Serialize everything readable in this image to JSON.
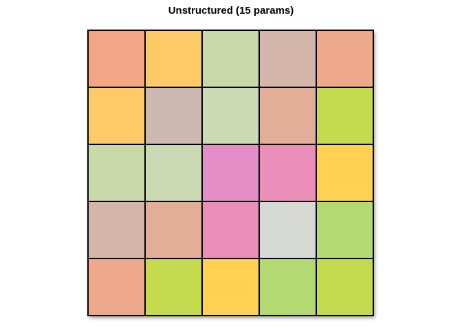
{
  "chart_data": {
    "type": "heatmap",
    "title": "Unstructured (15 params)",
    "rows": 5,
    "cols": 5,
    "grid": false,
    "legend": "none",
    "cells": [
      [
        "#F2A686",
        "#FDCA67",
        "#C9D8A8",
        "#D5B6AA",
        "#EEA88A"
      ],
      [
        "#FDCA67",
        "#CDB9B1",
        "#CCD9B5",
        "#E3AE98",
        "#C4DA4F"
      ],
      [
        "#C9D8A8",
        "#CCD9B5",
        "#E58DC7",
        "#EB8FBA",
        "#FED153"
      ],
      [
        "#D5B6AA",
        "#E3AE98",
        "#EB8FBA",
        "#D5D8D3",
        "#B3D973"
      ],
      [
        "#EEA88A",
        "#C4DA4F",
        "#FED153",
        "#B3D973",
        "#C4DA4F"
      ]
    ]
  }
}
